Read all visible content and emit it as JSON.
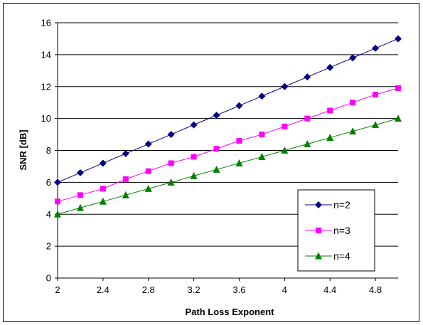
{
  "chart_data": {
    "type": "line",
    "title": "",
    "xlabel": "Path Loss Exponent",
    "ylabel": "SNR [dB]",
    "xlim": [
      2,
      5
    ],
    "ylim": [
      0,
      16
    ],
    "x": [
      2,
      2.2,
      2.4,
      2.6,
      2.8,
      3,
      3.2,
      3.4,
      3.6,
      3.8,
      4,
      4.2,
      4.4,
      4.6,
      4.8,
      5
    ],
    "x_ticks": [
      "2",
      "2.4",
      "2.8",
      "3.2",
      "3.6",
      "4",
      "4.4",
      "4.8"
    ],
    "y_ticks": [
      "0",
      "2",
      "4",
      "6",
      "8",
      "10",
      "12",
      "14",
      "16"
    ],
    "grid": "horizontal",
    "legend_position": "bottom-right",
    "series": [
      {
        "name": "n=2",
        "color": "#000080",
        "marker": "diamond",
        "values": [
          6.0,
          6.6,
          7.2,
          7.8,
          8.4,
          9.0,
          9.6,
          10.2,
          10.8,
          11.4,
          12.0,
          12.6,
          13.2,
          13.8,
          14.4,
          15.0
        ]
      },
      {
        "name": "n=3",
        "color": "#FF00FF",
        "marker": "square",
        "values": [
          4.8,
          5.2,
          5.6,
          6.2,
          6.7,
          7.2,
          7.6,
          8.1,
          8.6,
          9.0,
          9.5,
          10.0,
          10.5,
          11.0,
          11.5,
          11.9
        ]
      },
      {
        "name": "n=4",
        "color": "#008000",
        "marker": "triangle",
        "values": [
          4.0,
          4.4,
          4.8,
          5.2,
          5.6,
          6.0,
          6.4,
          6.8,
          7.2,
          7.6,
          8.0,
          8.4,
          8.8,
          9.2,
          9.6,
          10.0
        ]
      }
    ]
  }
}
